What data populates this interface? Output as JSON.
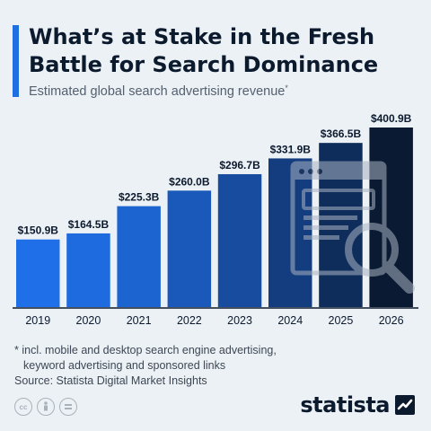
{
  "title": "What’s at Stake in the Fresh Battle for Search Dominance",
  "subtitle": "Estimated global search advertising revenue",
  "subtitle_marker": "*",
  "footnote": {
    "line1": "* incl. mobile and desktop search engine advertising,",
    "line2": "keyword advertising and sponsored links",
    "source": "Source: Statista Digital Market Insights"
  },
  "license_icons": [
    "cc-icon",
    "attribution-icon",
    "no-derivatives-icon"
  ],
  "logo_text": "statista",
  "colors": {
    "accent": "#1f6fe0",
    "bar_start": "#1f6fe8",
    "bar_end": "#0b1a33",
    "text_dark": "#0c1a2e",
    "background": "#ecf1f6"
  },
  "chart_data": {
    "type": "bar",
    "categories": [
      "2019",
      "2020",
      "2021",
      "2022",
      "2023",
      "2024",
      "2025",
      "2026"
    ],
    "values": [
      150.9,
      164.5,
      225.3,
      260.0,
      296.7,
      331.9,
      366.5,
      400.9
    ],
    "value_labels": [
      "$150.9B",
      "$164.5B",
      "$225.3B",
      "$260.0B",
      "$296.7B",
      "$331.9B",
      "$366.5B",
      "$400.9B"
    ],
    "ylim": [
      0,
      400.9
    ],
    "grid": false,
    "legend": "none",
    "decoration": "browser-window-with-magnifier-icon"
  }
}
